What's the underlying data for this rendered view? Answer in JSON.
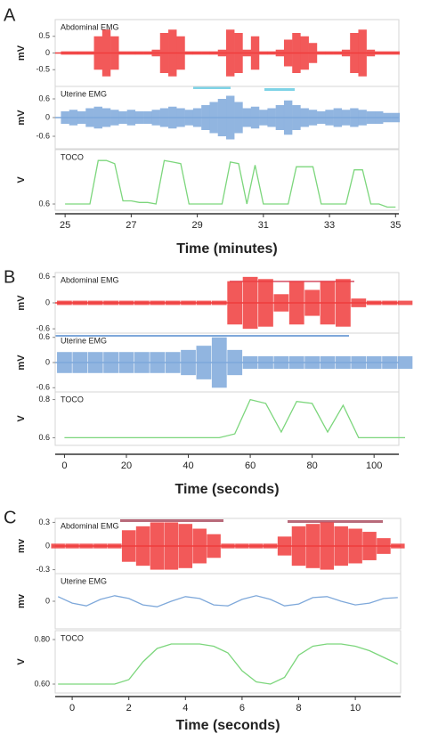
{
  "chart_data": [
    {
      "type": "multi-trace",
      "label": "A",
      "xlabel": "Time (minutes)",
      "xlim": [
        24.7,
        35.1
      ],
      "xticks": [
        25,
        27,
        29,
        31,
        33,
        35
      ],
      "x": [
        25,
        25.25,
        25.5,
        25.75,
        26,
        26.25,
        26.5,
        26.75,
        27,
        27.25,
        27.5,
        27.75,
        28,
        28.25,
        28.5,
        28.75,
        29,
        29.25,
        29.5,
        29.75,
        30,
        30.25,
        30.5,
        30.75,
        31,
        31.25,
        31.5,
        31.75,
        32,
        32.25,
        32.5,
        32.75,
        33,
        33.25,
        33.5,
        33.75,
        34,
        34.25,
        34.5,
        34.75,
        35
      ],
      "series": [
        {
          "name": "Abdominal EMG",
          "type": "envelope",
          "ylabel": "mV",
          "color": "#f03c3c",
          "ylim": [
            -1,
            1
          ],
          "yticks": [
            0.5,
            0,
            -0.5
          ],
          "values": [
            0.05,
            0.05,
            0.05,
            0.05,
            0.5,
            0.7,
            0.5,
            0.05,
            0.05,
            0.05,
            0.05,
            0.1,
            0.6,
            0.7,
            0.5,
            0.05,
            0.05,
            0.05,
            0.05,
            0.1,
            0.7,
            0.6,
            0.1,
            0.5,
            0.05,
            0.05,
            0.1,
            0.4,
            0.6,
            0.5,
            0.3,
            0.05,
            0.05,
            0.05,
            0.1,
            0.6,
            0.7,
            0.1,
            0.05,
            0.05,
            0.05
          ]
        },
        {
          "name": "Uterine EMG",
          "type": "envelope",
          "ylabel": "mV",
          "color": "#7ea8da",
          "ylim": [
            -1,
            1
          ],
          "yticks": [
            0.6,
            0,
            -0.6
          ],
          "values": [
            0.2,
            0.25,
            0.2,
            0.3,
            0.35,
            0.3,
            0.25,
            0.2,
            0.25,
            0.2,
            0.2,
            0.25,
            0.3,
            0.35,
            0.3,
            0.25,
            0.3,
            0.4,
            0.5,
            0.6,
            0.7,
            0.5,
            0.3,
            0.35,
            0.25,
            0.3,
            0.4,
            0.55,
            0.4,
            0.3,
            0.25,
            0.2,
            0.25,
            0.3,
            0.25,
            0.3,
            0.25,
            0.2,
            0.2,
            0.15,
            0.15
          ]
        },
        {
          "name": "TOCO",
          "type": "line",
          "ylabel": "V",
          "color": "#7cd67c",
          "ylim": [
            0.56,
            0.95
          ],
          "yticks": [
            0.6
          ],
          "values": [
            0.6,
            0.6,
            0.6,
            0.6,
            0.88,
            0.88,
            0.86,
            0.62,
            0.62,
            0.61,
            0.61,
            0.6,
            0.88,
            0.87,
            0.86,
            0.6,
            0.6,
            0.6,
            0.6,
            0.6,
            0.87,
            0.86,
            0.6,
            0.85,
            0.6,
            0.6,
            0.6,
            0.6,
            0.84,
            0.84,
            0.84,
            0.6,
            0.6,
            0.6,
            0.6,
            0.82,
            0.82,
            0.6,
            0.6,
            0.58,
            0.58
          ]
        }
      ]
    },
    {
      "type": "multi-trace",
      "label": "B",
      "xlabel": "Time (seconds)",
      "xlim": [
        -3,
        108
      ],
      "xticks": [
        0,
        20,
        40,
        60,
        80,
        100
      ],
      "x": [
        0,
        5,
        10,
        15,
        20,
        25,
        30,
        35,
        40,
        45,
        50,
        55,
        60,
        65,
        70,
        75,
        80,
        85,
        90,
        95,
        100,
        105,
        110
      ],
      "series": [
        {
          "name": "Abdominal EMG",
          "type": "envelope",
          "ylabel": "mV",
          "color": "#f03c3c",
          "ylim": [
            -0.7,
            0.7
          ],
          "yticks": [
            0.6,
            0,
            -0.6
          ],
          "values": [
            0.05,
            0.05,
            0.05,
            0.05,
            0.05,
            0.05,
            0.05,
            0.05,
            0.05,
            0.05,
            0.05,
            0.5,
            0.6,
            0.55,
            0.2,
            0.5,
            0.3,
            0.5,
            0.55,
            0.1,
            0.05,
            0.05,
            0.05
          ]
        },
        {
          "name": "Uterine EMG",
          "type": "envelope",
          "ylabel": "mV",
          "color": "#7ea8da",
          "ylim": [
            -0.7,
            0.7
          ],
          "yticks": [
            0.6,
            0,
            -0.6
          ],
          "values": [
            0.25,
            0.25,
            0.25,
            0.25,
            0.25,
            0.25,
            0.25,
            0.25,
            0.3,
            0.4,
            0.6,
            0.3,
            0.15,
            0.15,
            0.15,
            0.15,
            0.15,
            0.15,
            0.15,
            0.15,
            0.15,
            0.15,
            0.15
          ]
        },
        {
          "name": "TOCO",
          "type": "line",
          "ylabel": "V",
          "color": "#7cd67c",
          "ylim": [
            0.56,
            0.84
          ],
          "yticks": [
            0.8,
            0.6
          ],
          "values": [
            0.6,
            0.6,
            0.6,
            0.6,
            0.6,
            0.6,
            0.6,
            0.6,
            0.6,
            0.6,
            0.6,
            0.62,
            0.8,
            0.78,
            0.63,
            0.79,
            0.78,
            0.63,
            0.77,
            0.6,
            0.6,
            0.6,
            0.6
          ]
        }
      ]
    },
    {
      "type": "multi-trace",
      "label": "C",
      "xlabel": "Time (seconds)",
      "xlim": [
        -0.6,
        11.6
      ],
      "xticks": [
        0,
        2,
        4,
        6,
        8,
        10
      ],
      "x": [
        -0.5,
        0,
        0.5,
        1,
        1.5,
        2,
        2.5,
        3,
        3.5,
        4,
        4.5,
        5,
        5.5,
        6,
        6.5,
        7,
        7.5,
        8,
        8.5,
        9,
        9.5,
        10,
        10.5,
        11,
        11.5
      ],
      "series": [
        {
          "name": "Abdominal EMG",
          "type": "envelope",
          "ylabel": "mv",
          "color": "#f03c3c",
          "ylim": [
            -0.35,
            0.35
          ],
          "yticks": [
            0.3,
            0,
            -0.3
          ],
          "values": [
            0.03,
            0.03,
            0.03,
            0.03,
            0.03,
            0.2,
            0.25,
            0.3,
            0.3,
            0.28,
            0.22,
            0.15,
            0.03,
            0.03,
            0.03,
            0.03,
            0.12,
            0.25,
            0.28,
            0.3,
            0.25,
            0.22,
            0.18,
            0.1,
            0.03
          ]
        },
        {
          "name": "Uterine EMG",
          "type": "line",
          "ylabel": "mv",
          "color": "#7ea8da",
          "ylim": [
            -0.3,
            0.3
          ],
          "yticks": [
            0
          ],
          "values": [
            0.05,
            -0.02,
            -0.05,
            0.02,
            0.06,
            0.03,
            -0.04,
            -0.06,
            0,
            0.05,
            0.03,
            -0.04,
            -0.05,
            0.02,
            0.06,
            0.02,
            -0.05,
            -0.03,
            0.04,
            0.05,
            0,
            -0.04,
            -0.02,
            0.03,
            0.04
          ]
        },
        {
          "name": "TOCO",
          "type": "line",
          "ylabel": "V",
          "color": "#7cd67c",
          "ylim": [
            0.56,
            0.84
          ],
          "yticks": [
            {
              "value": 0.8,
              "label": "0.80"
            },
            {
              "value": 0.6,
              "label": "0.60"
            }
          ],
          "values": [
            0.6,
            0.6,
            0.6,
            0.6,
            0.6,
            0.62,
            0.7,
            0.76,
            0.78,
            0.78,
            0.78,
            0.77,
            0.74,
            0.66,
            0.61,
            0.6,
            0.63,
            0.73,
            0.77,
            0.78,
            0.78,
            0.77,
            0.75,
            0.72,
            0.69
          ]
        }
      ]
    }
  ]
}
